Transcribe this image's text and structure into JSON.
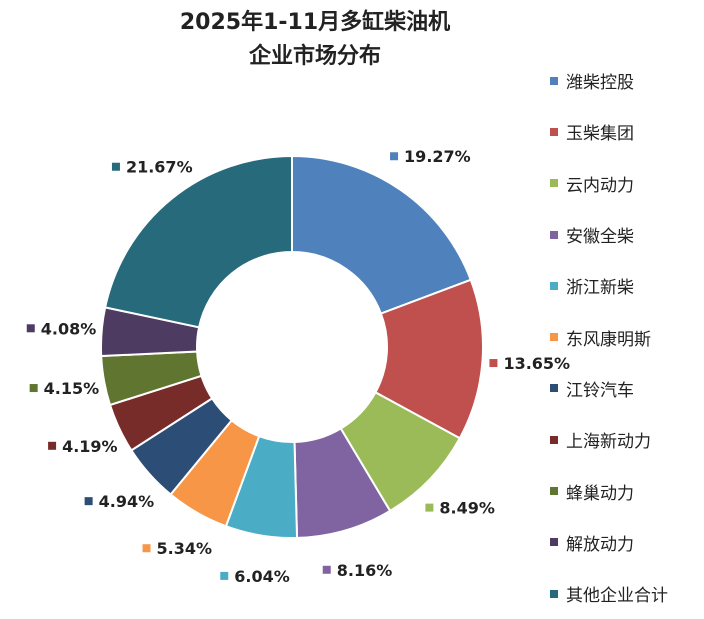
{
  "title": {
    "line1": "2025年1-11月多缸柴油机",
    "line2": "企业市场分布"
  },
  "chart_data": {
    "type": "pie",
    "categories": [
      "潍柴控股",
      "玉柴集团",
      "云内动力",
      "安徽全柴",
      "浙江新柴",
      "东风康明斯",
      "江铃汽车",
      "上海新动力",
      "蜂巢动力",
      "解放动力",
      "其他企业合计"
    ],
    "values": [
      19.27,
      13.65,
      8.49,
      8.16,
      6.04,
      5.34,
      4.94,
      4.19,
      4.15,
      4.08,
      21.67
    ],
    "labels": [
      "19.27%",
      "13.65%",
      "8.49%",
      "8.16%",
      "6.04%",
      "5.34%",
      "4.94%",
      "4.19%",
      "4.15%",
      "4.08%",
      "21.67%"
    ],
    "colors": [
      "#4f81bd",
      "#c0504d",
      "#9bbb59",
      "#8064a2",
      "#4bacc6",
      "#f79646",
      "#2c4d75",
      "#772c2a",
      "#5f7530",
      "#4d3b62",
      "#276a7c"
    ],
    "unit": "%",
    "donut": true,
    "legend_position": "right"
  }
}
